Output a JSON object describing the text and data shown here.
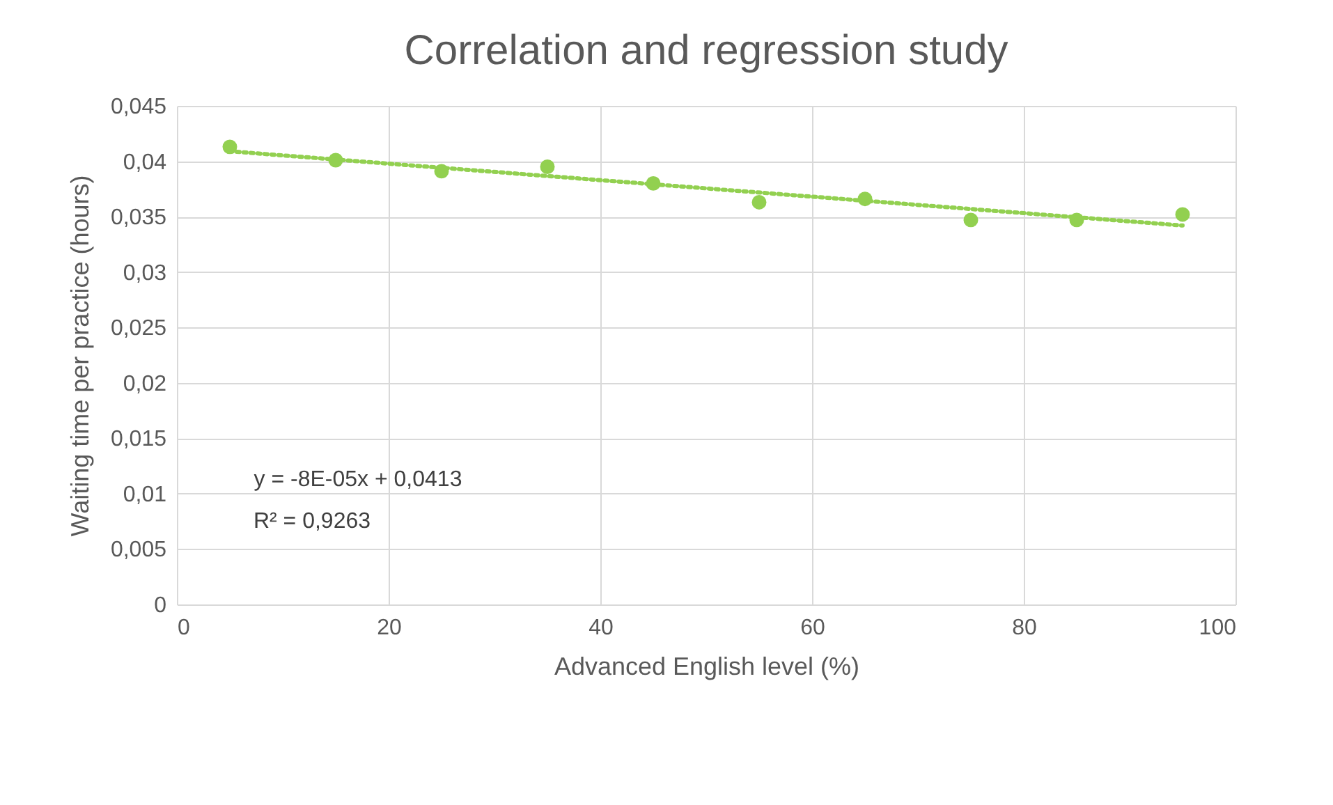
{
  "chart_data": {
    "type": "scatter",
    "title": "Correlation and regression study",
    "xlabel": "Advanced English level (%)",
    "ylabel": "Waiting time per practice (hours)",
    "x": [
      5,
      15,
      25,
      35,
      45,
      55,
      65,
      75,
      85,
      95
    ],
    "series": [
      {
        "color": "#92d050",
        "values": [
          0.0413,
          0.0401,
          0.0391,
          0.0395,
          0.038,
          0.0363,
          0.0366,
          0.0347,
          0.0347,
          0.0352
        ]
      },
      {
        "type": "line",
        "color": "#92d050",
        "line_style": "dotted",
        "marker": "none",
        "x": [
          5,
          95
        ],
        "values": [
          0.0409,
          0.0342
        ]
      }
    ],
    "annotations": [
      "y = -8E-05x + 0,0413",
      "R² = 0,9263"
    ],
    "xlim": [
      0,
      100
    ],
    "xticks": [
      0,
      20,
      40,
      60,
      80,
      100
    ],
    "ylim": [
      0,
      0.045
    ],
    "yticks": [
      0,
      {
        "value": 0.005,
        "label": "0,005"
      },
      {
        "value": 0.01,
        "label": "0,01"
      },
      {
        "value": 0.015,
        "label": "0,015"
      },
      {
        "value": 0.02,
        "label": "0,02"
      },
      {
        "value": 0.025,
        "label": "0,025"
      },
      {
        "value": 0.03,
        "label": "0,03"
      },
      {
        "value": 0.035,
        "label": "0,035"
      },
      {
        "value": 0.04,
        "label": "0,04"
      },
      {
        "value": 0.045,
        "label": "0,045"
      }
    ],
    "grid": true,
    "marker": "circle"
  }
}
